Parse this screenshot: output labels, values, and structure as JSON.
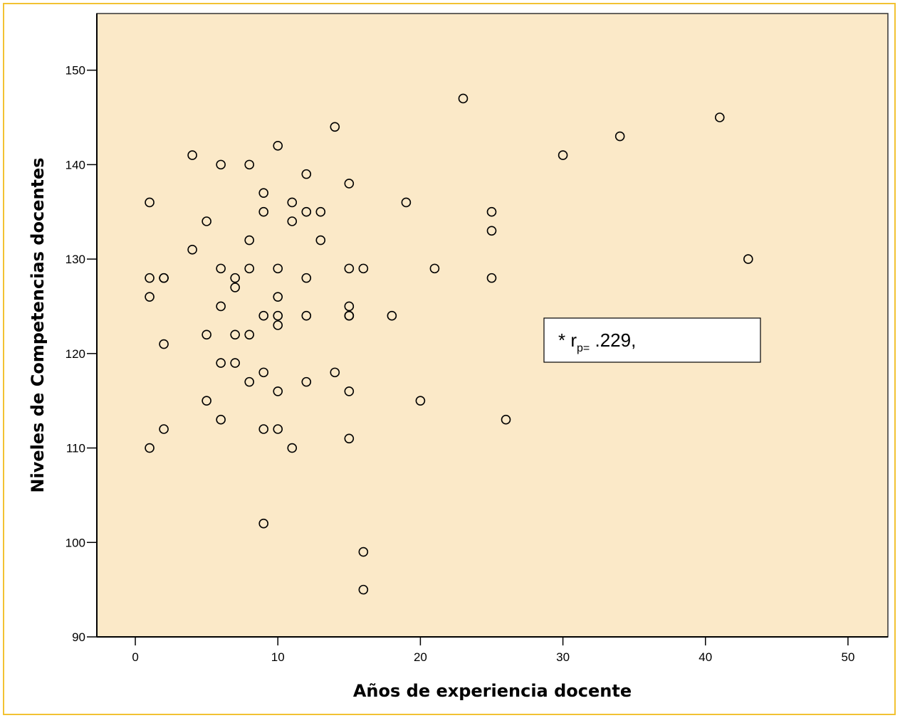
{
  "chart_data": {
    "type": "scatter",
    "title": "",
    "xlabel": "Años de experiencia docente",
    "ylabel": "Niveles de Competencias docentes",
    "xlim": [
      -2.7,
      52.8
    ],
    "ylim": [
      90,
      156
    ],
    "xticks": [
      0,
      10,
      20,
      30,
      40,
      50
    ],
    "yticks": [
      90,
      100,
      110,
      120,
      130,
      140,
      150
    ],
    "grid": false,
    "legend": "none",
    "colors": {
      "plot_background": "#fbe9c8",
      "frame_border": "#f2c233",
      "marker": "#000000"
    },
    "annotation": {
      "prefix": "* r",
      "subscript": "p=",
      "suffix": " .229,"
    },
    "points": [
      {
        "x": 1,
        "y": 136
      },
      {
        "x": 1,
        "y": 128
      },
      {
        "x": 1,
        "y": 126
      },
      {
        "x": 1,
        "y": 110
      },
      {
        "x": 2,
        "y": 128
      },
      {
        "x": 2,
        "y": 128
      },
      {
        "x": 2,
        "y": 121
      },
      {
        "x": 2,
        "y": 112
      },
      {
        "x": 4,
        "y": 141
      },
      {
        "x": 4,
        "y": 131
      },
      {
        "x": 5,
        "y": 134
      },
      {
        "x": 5,
        "y": 122
      },
      {
        "x": 5,
        "y": 115
      },
      {
        "x": 6,
        "y": 140
      },
      {
        "x": 6,
        "y": 129
      },
      {
        "x": 6,
        "y": 125
      },
      {
        "x": 6,
        "y": 119
      },
      {
        "x": 6,
        "y": 113
      },
      {
        "x": 7,
        "y": 128
      },
      {
        "x": 7,
        "y": 127
      },
      {
        "x": 7,
        "y": 122
      },
      {
        "x": 7,
        "y": 119
      },
      {
        "x": 8,
        "y": 140
      },
      {
        "x": 8,
        "y": 132
      },
      {
        "x": 8,
        "y": 129
      },
      {
        "x": 8,
        "y": 122
      },
      {
        "x": 8,
        "y": 117
      },
      {
        "x": 9,
        "y": 137
      },
      {
        "x": 9,
        "y": 135
      },
      {
        "x": 9,
        "y": 124
      },
      {
        "x": 9,
        "y": 118
      },
      {
        "x": 9,
        "y": 112
      },
      {
        "x": 9,
        "y": 102
      },
      {
        "x": 10,
        "y": 142
      },
      {
        "x": 10,
        "y": 129
      },
      {
        "x": 10,
        "y": 126
      },
      {
        "x": 10,
        "y": 124
      },
      {
        "x": 10,
        "y": 123
      },
      {
        "x": 10,
        "y": 116
      },
      {
        "x": 10,
        "y": 112
      },
      {
        "x": 11,
        "y": 136
      },
      {
        "x": 11,
        "y": 134
      },
      {
        "x": 11,
        "y": 110
      },
      {
        "x": 12,
        "y": 139
      },
      {
        "x": 12,
        "y": 135
      },
      {
        "x": 12,
        "y": 128
      },
      {
        "x": 12,
        "y": 124
      },
      {
        "x": 12,
        "y": 117
      },
      {
        "x": 13,
        "y": 135
      },
      {
        "x": 13,
        "y": 132
      },
      {
        "x": 14,
        "y": 144
      },
      {
        "x": 14,
        "y": 118
      },
      {
        "x": 15,
        "y": 138
      },
      {
        "x": 15,
        "y": 129
      },
      {
        "x": 15,
        "y": 125
      },
      {
        "x": 15,
        "y": 124
      },
      {
        "x": 15,
        "y": 124
      },
      {
        "x": 15,
        "y": 116
      },
      {
        "x": 15,
        "y": 111
      },
      {
        "x": 16,
        "y": 129
      },
      {
        "x": 16,
        "y": 99
      },
      {
        "x": 16,
        "y": 95
      },
      {
        "x": 18,
        "y": 124
      },
      {
        "x": 19,
        "y": 136
      },
      {
        "x": 20,
        "y": 115
      },
      {
        "x": 21,
        "y": 129
      },
      {
        "x": 23,
        "y": 147
      },
      {
        "x": 25,
        "y": 135
      },
      {
        "x": 25,
        "y": 133
      },
      {
        "x": 25,
        "y": 128
      },
      {
        "x": 26,
        "y": 113
      },
      {
        "x": 30,
        "y": 141
      },
      {
        "x": 34,
        "y": 143
      },
      {
        "x": 41,
        "y": 145
      },
      {
        "x": 43,
        "y": 130
      }
    ]
  }
}
